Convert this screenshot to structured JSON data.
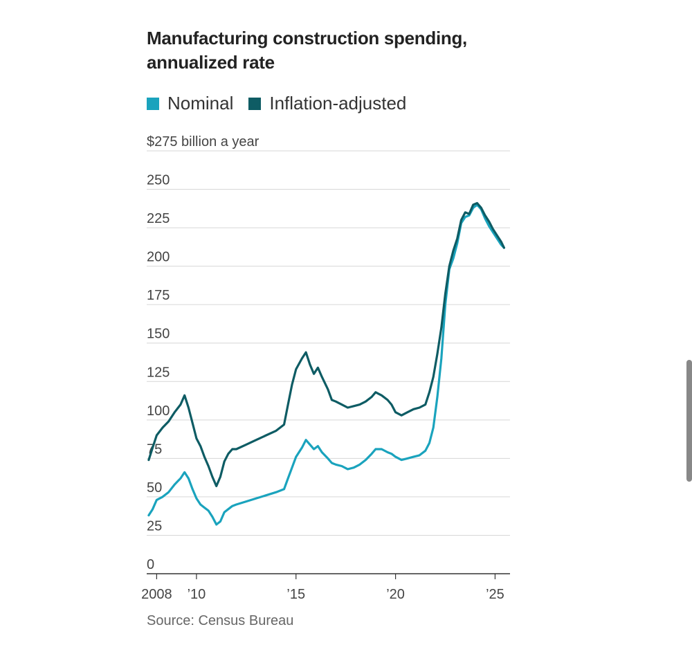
{
  "title": "Manufacturing construction spending, annualized rate",
  "source": "Source: Census Bureau",
  "chart_data": {
    "type": "line",
    "title": "Manufacturing construction spending, annualized rate",
    "ylabel": "$275 billion a year",
    "ylim": [
      0,
      275
    ],
    "yticks": [
      0,
      25,
      50,
      75,
      100,
      125,
      150,
      175,
      200,
      225,
      250
    ],
    "ytick_labels": [
      "0",
      "25",
      "50",
      "75",
      "100",
      "125",
      "150",
      "175",
      "200",
      "225",
      "250"
    ],
    "top_tick_label": "$275 billion a year",
    "xlim": [
      2007.5,
      2025.75
    ],
    "xticks": [
      2008,
      2010,
      2015,
      2020,
      2025
    ],
    "xtick_labels": [
      "2008",
      "’10",
      "’15",
      "’20",
      "’25"
    ],
    "legend": [
      "Nominal",
      "Inflation-adjusted"
    ],
    "series": [
      {
        "name": "Nominal",
        "color": "#1aa3bd",
        "points": [
          [
            2007.6,
            38
          ],
          [
            2007.8,
            42
          ],
          [
            2008.0,
            48
          ],
          [
            2008.3,
            50
          ],
          [
            2008.6,
            53
          ],
          [
            2008.9,
            58
          ],
          [
            2009.2,
            62
          ],
          [
            2009.4,
            66
          ],
          [
            2009.6,
            62
          ],
          [
            2009.8,
            55
          ],
          [
            2010.0,
            49
          ],
          [
            2010.2,
            45
          ],
          [
            2010.4,
            43
          ],
          [
            2010.6,
            41
          ],
          [
            2010.8,
            37
          ],
          [
            2011.0,
            32
          ],
          [
            2011.2,
            34
          ],
          [
            2011.4,
            40
          ],
          [
            2011.6,
            42
          ],
          [
            2011.8,
            44
          ],
          [
            2012.0,
            45
          ],
          [
            2012.5,
            47
          ],
          [
            2013.0,
            49
          ],
          [
            2013.5,
            51
          ],
          [
            2014.0,
            53
          ],
          [
            2014.4,
            55
          ],
          [
            2014.6,
            62
          ],
          [
            2014.8,
            69
          ],
          [
            2015.0,
            76
          ],
          [
            2015.3,
            82
          ],
          [
            2015.5,
            87
          ],
          [
            2015.7,
            84
          ],
          [
            2015.9,
            81
          ],
          [
            2016.1,
            83
          ],
          [
            2016.3,
            79
          ],
          [
            2016.6,
            75
          ],
          [
            2016.8,
            72
          ],
          [
            2017.0,
            71
          ],
          [
            2017.3,
            70
          ],
          [
            2017.6,
            68
          ],
          [
            2017.9,
            69
          ],
          [
            2018.2,
            71
          ],
          [
            2018.5,
            74
          ],
          [
            2018.8,
            78
          ],
          [
            2019.0,
            81
          ],
          [
            2019.3,
            81
          ],
          [
            2019.6,
            79
          ],
          [
            2019.8,
            78
          ],
          [
            2020.0,
            76
          ],
          [
            2020.3,
            74
          ],
          [
            2020.6,
            75
          ],
          [
            2020.9,
            76
          ],
          [
            2021.2,
            77
          ],
          [
            2021.5,
            80
          ],
          [
            2021.7,
            85
          ],
          [
            2021.9,
            95
          ],
          [
            2022.1,
            115
          ],
          [
            2022.3,
            140
          ],
          [
            2022.5,
            175
          ],
          [
            2022.7,
            198
          ],
          [
            2022.9,
            205
          ],
          [
            2023.1,
            215
          ],
          [
            2023.3,
            228
          ],
          [
            2023.5,
            232
          ],
          [
            2023.7,
            233
          ],
          [
            2023.9,
            238
          ],
          [
            2024.1,
            240
          ],
          [
            2024.3,
            237
          ],
          [
            2024.5,
            231
          ],
          [
            2024.7,
            226
          ],
          [
            2024.9,
            222
          ],
          [
            2025.1,
            218
          ],
          [
            2025.3,
            214
          ],
          [
            2025.45,
            212
          ]
        ]
      },
      {
        "name": "Inflation-adjusted",
        "color": "#0e5c64",
        "points": [
          [
            2007.6,
            74
          ],
          [
            2007.8,
            82
          ],
          [
            2008.0,
            90
          ],
          [
            2008.3,
            95
          ],
          [
            2008.6,
            99
          ],
          [
            2008.9,
            105
          ],
          [
            2009.2,
            110
          ],
          [
            2009.4,
            116
          ],
          [
            2009.6,
            108
          ],
          [
            2009.8,
            98
          ],
          [
            2010.0,
            88
          ],
          [
            2010.2,
            83
          ],
          [
            2010.4,
            76
          ],
          [
            2010.6,
            70
          ],
          [
            2010.8,
            63
          ],
          [
            2011.0,
            57
          ],
          [
            2011.2,
            63
          ],
          [
            2011.4,
            73
          ],
          [
            2011.6,
            78
          ],
          [
            2011.8,
            81
          ],
          [
            2012.0,
            81
          ],
          [
            2012.5,
            84
          ],
          [
            2013.0,
            87
          ],
          [
            2013.5,
            90
          ],
          [
            2014.0,
            93
          ],
          [
            2014.4,
            97
          ],
          [
            2014.6,
            110
          ],
          [
            2014.8,
            123
          ],
          [
            2015.0,
            133
          ],
          [
            2015.3,
            140
          ],
          [
            2015.5,
            144
          ],
          [
            2015.7,
            136
          ],
          [
            2015.9,
            130
          ],
          [
            2016.1,
            134
          ],
          [
            2016.3,
            128
          ],
          [
            2016.6,
            120
          ],
          [
            2016.8,
            113
          ],
          [
            2017.0,
            112
          ],
          [
            2017.3,
            110
          ],
          [
            2017.6,
            108
          ],
          [
            2017.9,
            109
          ],
          [
            2018.2,
            110
          ],
          [
            2018.5,
            112
          ],
          [
            2018.8,
            115
          ],
          [
            2019.0,
            118
          ],
          [
            2019.3,
            116
          ],
          [
            2019.6,
            113
          ],
          [
            2019.8,
            110
          ],
          [
            2020.0,
            105
          ],
          [
            2020.3,
            103
          ],
          [
            2020.6,
            105
          ],
          [
            2020.9,
            107
          ],
          [
            2021.2,
            108
          ],
          [
            2021.5,
            110
          ],
          [
            2021.7,
            118
          ],
          [
            2021.9,
            128
          ],
          [
            2022.1,
            143
          ],
          [
            2022.3,
            160
          ],
          [
            2022.5,
            182
          ],
          [
            2022.7,
            200
          ],
          [
            2022.9,
            210
          ],
          [
            2023.1,
            218
          ],
          [
            2023.3,
            230
          ],
          [
            2023.5,
            235
          ],
          [
            2023.7,
            234
          ],
          [
            2023.9,
            240
          ],
          [
            2024.1,
            241
          ],
          [
            2024.3,
            238
          ],
          [
            2024.5,
            233
          ],
          [
            2024.7,
            229
          ],
          [
            2024.9,
            224
          ],
          [
            2025.1,
            220
          ],
          [
            2025.3,
            216
          ],
          [
            2025.45,
            212
          ]
        ]
      }
    ]
  }
}
